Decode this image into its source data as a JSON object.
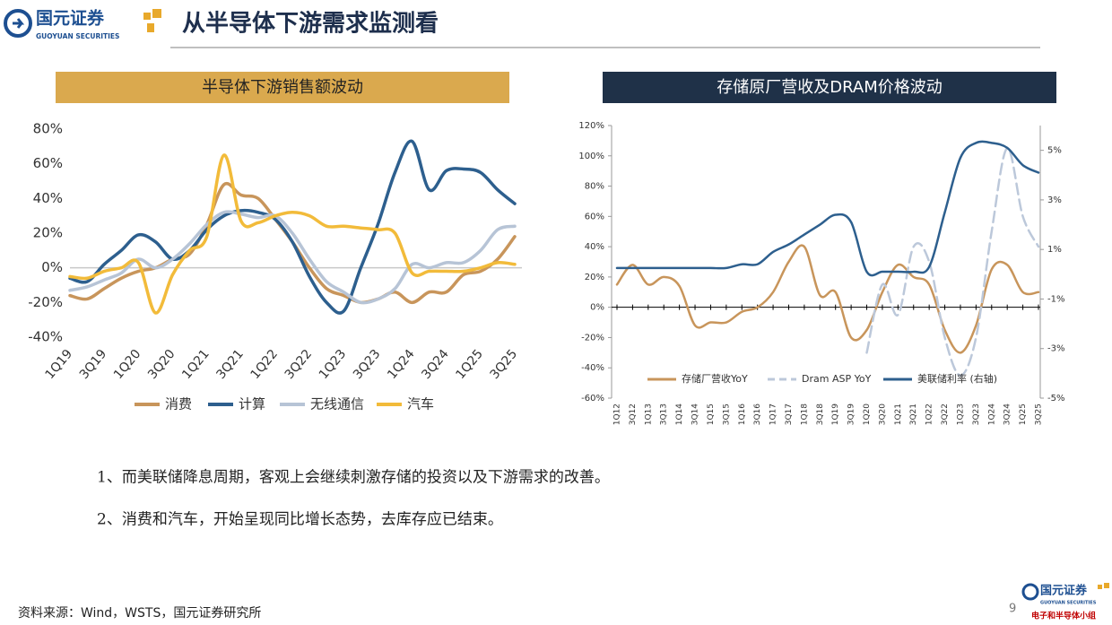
{
  "header": {
    "logo": "国元证券",
    "logo_en": "GUOYUAN SECURITIES",
    "title": "从半导体下游需求监测看"
  },
  "chart_data": [
    {
      "type": "line",
      "title": "半导体下游销售额波动",
      "categories": [
        "1Q19",
        null,
        "3Q19",
        null,
        "1Q20",
        null,
        "3Q20",
        null,
        "1Q21",
        null,
        "3Q21",
        null,
        "1Q22",
        null,
        "3Q22",
        null,
        "1Q23",
        null,
        "3Q23",
        null,
        "1Q24",
        null,
        "3Q24",
        null,
        "1Q25",
        null,
        "3Q25"
      ],
      "series": [
        {
          "name": "消费",
          "color": "#c8955b",
          "values": [
            -16,
            -18,
            -12,
            -6,
            -2,
            0,
            5,
            8,
            25,
            48,
            42,
            40,
            28,
            15,
            0,
            -12,
            -16,
            -20,
            -18,
            -14,
            -20,
            -14,
            -14,
            -4,
            -2,
            5,
            18
          ]
        },
        {
          "name": "计算",
          "color": "#2d5f8e",
          "values": [
            -6,
            -8,
            2,
            10,
            19,
            15,
            5,
            10,
            22,
            30,
            33,
            32,
            28,
            15,
            -5,
            -20,
            -25,
            0,
            25,
            55,
            73,
            45,
            56,
            57,
            55,
            45,
            37
          ]
        },
        {
          "name": "无线通信",
          "color": "#b7c4d6",
          "values": [
            -13,
            -11,
            -7,
            -3,
            5,
            0,
            5,
            14,
            25,
            32,
            31,
            29,
            30,
            20,
            5,
            -8,
            -14,
            -20,
            -18,
            -12,
            2,
            0,
            3,
            3,
            10,
            22,
            24
          ]
        },
        {
          "name": "汽车",
          "color": "#f2bb3a",
          "values": [
            -5,
            -6,
            -2,
            0,
            3,
            -26,
            -4,
            10,
            18,
            65,
            27,
            26,
            30,
            32,
            30,
            24,
            24,
            23,
            22,
            20,
            -3,
            -2,
            -2,
            -2,
            0,
            3,
            2
          ]
        }
      ],
      "ylim": [
        -40,
        80
      ],
      "yticks": [
        {
          "value": -40,
          "label": "-40%"
        },
        {
          "value": -20,
          "label": "-20%"
        },
        {
          "value": 0,
          "label": "0%"
        },
        {
          "value": 20,
          "label": "20%"
        },
        {
          "value": 40,
          "label": "40%"
        },
        {
          "value": 60,
          "label": "60%"
        },
        {
          "value": 80,
          "label": "80%"
        }
      ],
      "grid": false,
      "legend": "bottom"
    },
    {
      "type": "line",
      "title": "存储原厂营收及DRAM价格波动",
      "categories": [
        "1Q12",
        "3Q12",
        "1Q13",
        "3Q13",
        "1Q14",
        "3Q14",
        "1Q15",
        "3Q15",
        "1Q16",
        "3Q16",
        "1Q17",
        "3Q17",
        "1Q18",
        "3Q18",
        "1Q19",
        "3Q19",
        "1Q20",
        "3Q20",
        "1Q21",
        "3Q21",
        "1Q22",
        "3Q22",
        "1Q23",
        "3Q23",
        "1Q24",
        "3Q24",
        "1Q25",
        "3Q25"
      ],
      "series": [
        {
          "name": "存储厂营收YoY",
          "color": "#c8955b",
          "values": [
            15,
            28,
            15,
            20,
            14,
            -12,
            -10,
            -10,
            -3,
            0,
            10,
            30,
            40,
            8,
            10,
            -20,
            -15,
            10,
            28,
            20,
            15,
            -15,
            -30,
            -12,
            25,
            28,
            10,
            10
          ]
        },
        {
          "name": "Dram ASP YoY",
          "color": "#bcc8da",
          "line_style": "dashed",
          "values": [
            null,
            null,
            null,
            null,
            null,
            null,
            null,
            null,
            null,
            null,
            null,
            null,
            null,
            null,
            null,
            null,
            -30,
            15,
            -5,
            40,
            30,
            -20,
            -45,
            -20,
            50,
            105,
            60,
            40
          ]
        },
        {
          "name": "美联储利率 (右轴)",
          "color": "#2d5f8e",
          "axis": "y2",
          "values": [
            0.25,
            0.25,
            0.25,
            0.25,
            0.25,
            0.25,
            0.25,
            0.25,
            0.4,
            0.4,
            0.9,
            1.2,
            1.6,
            2.0,
            2.4,
            2.1,
            0.1,
            0.1,
            0.1,
            0.1,
            0.3,
            2.5,
            4.7,
            5.3,
            5.3,
            5.1,
            4.4,
            4.1
          ]
        }
      ],
      "ylim": [
        -60,
        120
      ],
      "yticks": [
        {
          "value": -60,
          "label": "-60%"
        },
        {
          "value": -40,
          "label": "-40%"
        },
        {
          "value": -20,
          "label": "-20%"
        },
        {
          "value": 0,
          "label": "0%"
        },
        {
          "value": 20,
          "label": "20%"
        },
        {
          "value": 40,
          "label": "40%"
        },
        {
          "value": 60,
          "label": "60%"
        },
        {
          "value": 80,
          "label": "80%"
        },
        {
          "value": 100,
          "label": "100%"
        },
        {
          "value": 120,
          "label": "120%"
        }
      ],
      "y2lim": [
        -5,
        6
      ],
      "y2ticks": [
        {
          "value": -5,
          "label": "-5%"
        },
        {
          "value": -3,
          "label": "-3%"
        },
        {
          "value": -1,
          "label": "-1%"
        },
        {
          "value": 1,
          "label": "1%"
        },
        {
          "value": 3,
          "label": "3%"
        },
        {
          "value": 5,
          "label": "5%"
        }
      ],
      "grid": false,
      "legend": "bottom"
    }
  ],
  "notes": [
    "1、而美联储降息周期，客观上会继续刺激存储的投资以及下游需求的改善。",
    "2、消费和汽车，开始呈现同比增长态势，去库存应已结束。"
  ],
  "footer": {
    "source": "资料来源：Wind，WSTS，国元证券研究所",
    "page": "9",
    "logo": "国元证券",
    "logo_en": "GUOYUAN SECURITIES",
    "team": "电子和半导体小组"
  }
}
